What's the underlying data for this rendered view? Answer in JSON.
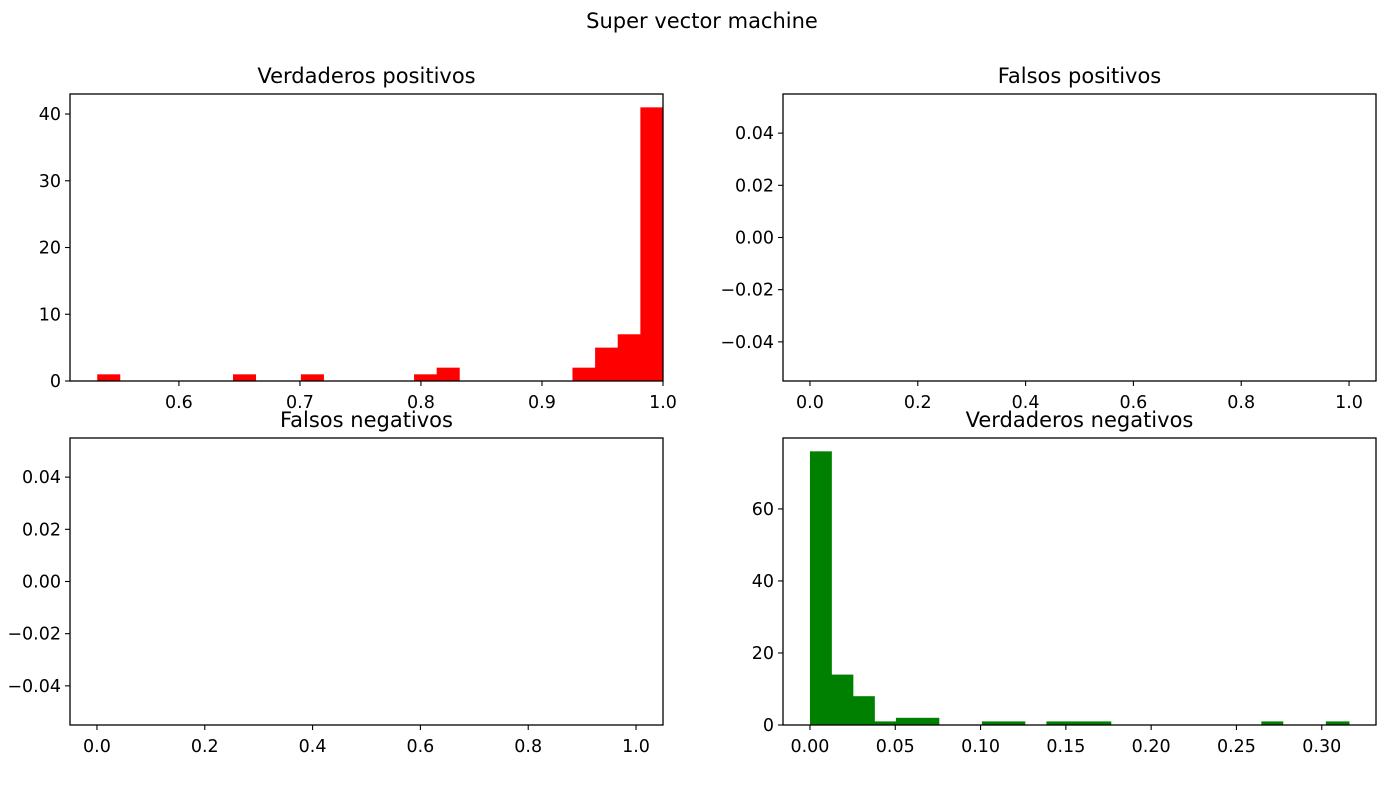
{
  "chart_data": {
    "title": "Super vector machine",
    "panels": [
      {
        "id": "tp",
        "type": "bar",
        "title": "Verdaderos positivos",
        "color": "#ff0000",
        "xlim": [
          0.51,
          1.0
        ],
        "ylim": [
          0,
          43
        ],
        "xticks": [
          0.6,
          0.7,
          0.8,
          0.9,
          1.0
        ],
        "xtick_labels": [
          "0.6",
          "0.7",
          "0.8",
          "0.9",
          "1.0"
        ],
        "yticks": [
          0,
          10,
          20,
          30,
          40
        ],
        "ytick_labels": [
          "0",
          "10",
          "20",
          "30",
          "40"
        ],
        "bins": [
          {
            "x0": 0.5325,
            "x1": 0.5512,
            "count": 1
          },
          {
            "x0": 0.5512,
            "x1": 0.5699,
            "count": 0
          },
          {
            "x0": 0.5699,
            "x1": 0.5886,
            "count": 0
          },
          {
            "x0": 0.5886,
            "x1": 0.6073,
            "count": 0
          },
          {
            "x0": 0.6073,
            "x1": 0.626,
            "count": 0
          },
          {
            "x0": 0.626,
            "x1": 0.6447,
            "count": 0
          },
          {
            "x0": 0.6447,
            "x1": 0.6634,
            "count": 1
          },
          {
            "x0": 0.6634,
            "x1": 0.6821,
            "count": 0
          },
          {
            "x0": 0.6821,
            "x1": 0.7008,
            "count": 0
          },
          {
            "x0": 0.7008,
            "x1": 0.7195,
            "count": 1
          },
          {
            "x0": 0.7195,
            "x1": 0.7382,
            "count": 0
          },
          {
            "x0": 0.7382,
            "x1": 0.7569,
            "count": 0
          },
          {
            "x0": 0.7569,
            "x1": 0.7756,
            "count": 0
          },
          {
            "x0": 0.7756,
            "x1": 0.7943,
            "count": 0
          },
          {
            "x0": 0.7943,
            "x1": 0.813,
            "count": 1
          },
          {
            "x0": 0.813,
            "x1": 0.8317,
            "count": 2
          },
          {
            "x0": 0.8317,
            "x1": 0.8504,
            "count": 0
          },
          {
            "x0": 0.8504,
            "x1": 0.8691,
            "count": 0
          },
          {
            "x0": 0.8691,
            "x1": 0.8878,
            "count": 0
          },
          {
            "x0": 0.8878,
            "x1": 0.9065,
            "count": 0
          },
          {
            "x0": 0.9065,
            "x1": 0.9252,
            "count": 0
          },
          {
            "x0": 0.9252,
            "x1": 0.9439,
            "count": 2
          },
          {
            "x0": 0.9439,
            "x1": 0.9626,
            "count": 5
          },
          {
            "x0": 0.9626,
            "x1": 0.9813,
            "count": 7
          },
          {
            "x0": 0.9813,
            "x1": 1.0,
            "count": 41
          }
        ]
      },
      {
        "id": "fp",
        "type": "bar",
        "title": "Falsos positivos",
        "color": "#ff0000",
        "xlim": [
          -0.05,
          1.05
        ],
        "ylim": [
          -0.055,
          0.055
        ],
        "xticks": [
          0.0,
          0.2,
          0.4,
          0.6,
          0.8,
          1.0
        ],
        "xtick_labels": [
          "0.0",
          "0.2",
          "0.4",
          "0.6",
          "0.8",
          "1.0"
        ],
        "yticks": [
          -0.04,
          -0.02,
          0.0,
          0.02,
          0.04
        ],
        "ytick_labels": [
          "−0.04",
          "−0.02",
          "0.00",
          "0.02",
          "0.04"
        ],
        "bins": []
      },
      {
        "id": "fn",
        "type": "bar",
        "title": "Falsos negativos",
        "color": "#008000",
        "xlim": [
          -0.05,
          1.05
        ],
        "ylim": [
          -0.055,
          0.055
        ],
        "xticks": [
          0.0,
          0.2,
          0.4,
          0.6,
          0.8,
          1.0
        ],
        "xtick_labels": [
          "0.0",
          "0.2",
          "0.4",
          "0.6",
          "0.8",
          "1.0"
        ],
        "yticks": [
          -0.04,
          -0.02,
          0.0,
          0.02,
          0.04
        ],
        "ytick_labels": [
          "−0.04",
          "−0.02",
          "0.00",
          "0.02",
          "0.04"
        ],
        "bins": []
      },
      {
        "id": "tn",
        "type": "bar",
        "title": "Verdaderos negativos",
        "color": "#008000",
        "xlim": [
          -0.0158,
          0.3318
        ],
        "ylim": [
          0,
          79.7
        ],
        "xticks": [
          0.0,
          0.05,
          0.1,
          0.15,
          0.2,
          0.25,
          0.3
        ],
        "xtick_labels": [
          "0.00",
          "0.05",
          "0.10",
          "0.15",
          "0.20",
          "0.25",
          "0.30"
        ],
        "yticks": [
          0,
          20,
          40,
          60
        ],
        "ytick_labels": [
          "0",
          "20",
          "40",
          "60"
        ],
        "bins": [
          {
            "x0": 0.0,
            "x1": 0.0126,
            "count": 76
          },
          {
            "x0": 0.0126,
            "x1": 0.0252,
            "count": 14
          },
          {
            "x0": 0.0252,
            "x1": 0.0378,
            "count": 8
          },
          {
            "x0": 0.0378,
            "x1": 0.0504,
            "count": 1
          },
          {
            "x0": 0.0504,
            "x1": 0.063,
            "count": 2
          },
          {
            "x0": 0.063,
            "x1": 0.0756,
            "count": 2
          },
          {
            "x0": 0.0756,
            "x1": 0.0882,
            "count": 0
          },
          {
            "x0": 0.0882,
            "x1": 0.1008,
            "count": 0
          },
          {
            "x0": 0.1008,
            "x1": 0.1134,
            "count": 1
          },
          {
            "x0": 0.1134,
            "x1": 0.126,
            "count": 1
          },
          {
            "x0": 0.126,
            "x1": 0.1386,
            "count": 0
          },
          {
            "x0": 0.1386,
            "x1": 0.1512,
            "count": 1
          },
          {
            "x0": 0.1512,
            "x1": 0.1638,
            "count": 1
          },
          {
            "x0": 0.1638,
            "x1": 0.1764,
            "count": 1
          },
          {
            "x0": 0.1764,
            "x1": 0.189,
            "count": 0
          },
          {
            "x0": 0.189,
            "x1": 0.2016,
            "count": 0
          },
          {
            "x0": 0.2016,
            "x1": 0.2142,
            "count": 0
          },
          {
            "x0": 0.2142,
            "x1": 0.2268,
            "count": 0
          },
          {
            "x0": 0.2268,
            "x1": 0.2394,
            "count": 0
          },
          {
            "x0": 0.2394,
            "x1": 0.252,
            "count": 0
          },
          {
            "x0": 0.252,
            "x1": 0.2646,
            "count": 0
          },
          {
            "x0": 0.2646,
            "x1": 0.2772,
            "count": 1
          },
          {
            "x0": 0.2772,
            "x1": 0.2898,
            "count": 0
          },
          {
            "x0": 0.2898,
            "x1": 0.3024,
            "count": 0
          },
          {
            "x0": 0.3024,
            "x1": 0.316,
            "count": 1
          }
        ]
      }
    ]
  }
}
